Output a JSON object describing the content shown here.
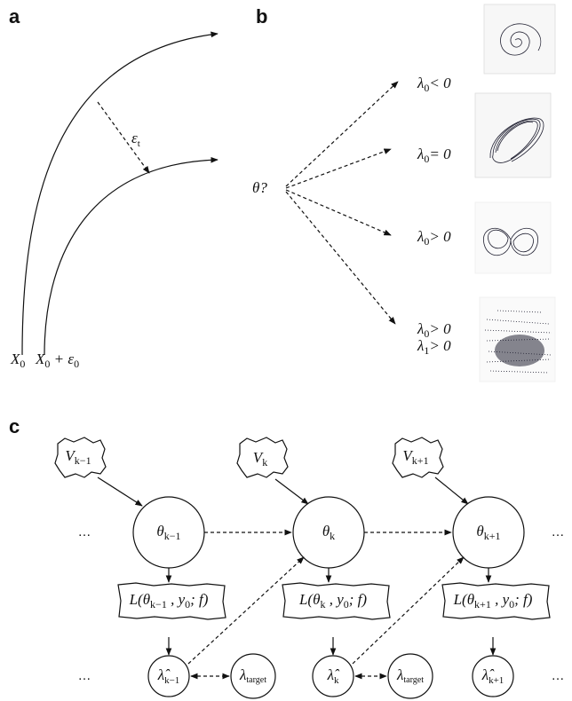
{
  "panel_a": {
    "label": "a",
    "start_labels": [
      [
        "X",
        {
          "sub": "0"
        }
      ],
      [
        "X",
        {
          "sub": "0"
        },
        " + ε",
        {
          "sub": "0"
        }
      ]
    ],
    "separation": [
      "ε",
      {
        "sub": "t"
      }
    ]
  },
  "panel_b": {
    "label": "b",
    "parameter": "θ?",
    "regimes": [
      [
        [
          "λ",
          {
            "sub": "0"
          },
          "< 0"
        ]
      ],
      [
        [
          "λ",
          {
            "sub": "0"
          },
          "= 0"
        ]
      ],
      [
        [
          "λ",
          {
            "sub": "0"
          },
          "> 0"
        ]
      ],
      [
        [
          "λ",
          {
            "sub": "0"
          },
          "> 0"
        ],
        [
          "λ",
          {
            "sub": "1"
          },
          "> 0"
        ]
      ]
    ]
  },
  "panel_c": {
    "label": "c",
    "ellipsis": "…",
    "steps": [
      {
        "noise": [
          "V",
          {
            "sub": "k−1"
          }
        ],
        "theta": [
          "θ",
          {
            "sub": "k−1"
          }
        ],
        "loss": [
          "L(θ",
          {
            "sub": "k−1"
          },
          " , y",
          {
            "sub": "0"
          },
          "; f)"
        ],
        "estimate": [
          "λ̂",
          {
            "sub": "k−1"
          }
        ]
      },
      {
        "noise": [
          "V",
          {
            "sub": "k"
          }
        ],
        "theta": [
          "θ",
          {
            "sub": "k"
          }
        ],
        "loss": [
          "L(θ",
          {
            "sub": "k"
          },
          " , y",
          {
            "sub": "0"
          },
          "; f)"
        ],
        "estimate": [
          "λ̂",
          {
            "sub": "k"
          }
        ]
      },
      {
        "noise": [
          "V",
          {
            "sub": "k+1"
          }
        ],
        "theta": [
          "θ",
          {
            "sub": "k+1"
          }
        ],
        "loss": [
          "L(θ",
          {
            "sub": "k+1"
          },
          " , y",
          {
            "sub": "0"
          },
          "; f)"
        ],
        "estimate": [
          "λ̂",
          {
            "sub": "k+1"
          }
        ]
      }
    ],
    "target": [
      "λ",
      {
        "sub": "target"
      }
    ]
  }
}
